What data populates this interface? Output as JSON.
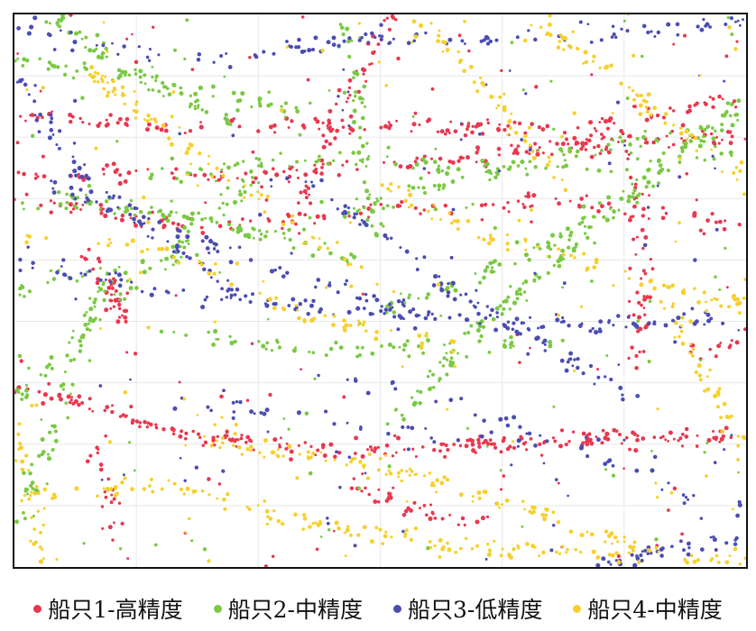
{
  "chart_data": {
    "type": "scatter",
    "title": "",
    "xlabel": "",
    "ylabel": "",
    "grid": true,
    "legend_position": "bottom",
    "xlim": [
      0,
      100
    ],
    "ylim": [
      0,
      100
    ],
    "series": [
      {
        "name": "船只1-高精度",
        "color": "#e8384f",
        "tracks": [
          {
            "x": [
              0,
              20,
              40,
              60,
              80,
              100
            ],
            "y": [
              33,
              25,
              21,
              22,
              23,
              24
            ],
            "count": 230
          },
          {
            "x": [
              0,
              30,
              60,
              80,
              100
            ],
            "y": [
              71,
              71,
              74,
              77,
              78
            ],
            "count": 170
          },
          {
            "x": [
              0,
              20,
              50,
              75,
              100
            ],
            "y": [
              82,
              80,
              80,
              79,
              85
            ],
            "count": 140
          },
          {
            "x": [
              0,
              25,
              50,
              75,
              100
            ],
            "y": [
              67,
              61,
              65,
              66,
              62
            ],
            "count": 110
          },
          {
            "x": [
              38,
              44,
              52
            ],
            "y": [
              62,
              82,
              100
            ],
            "count": 55
          },
          {
            "x": [
              46,
              52,
              58,
              66
            ],
            "y": [
              16,
              12,
              9,
              8
            ],
            "count": 40
          },
          {
            "x": [
              83,
              85,
              86,
              85
            ],
            "y": [
              82,
              66,
              50,
              36
            ],
            "count": 50
          },
          {
            "x": [
              10,
              13,
              15
            ],
            "y": [
              57,
              50,
              45
            ],
            "count": 40
          },
          {
            "x": [
              11,
              13,
              14
            ],
            "y": [
              22,
              15,
              9
            ],
            "count": 18
          },
          {
            "x": [
              93,
              96,
              100
            ],
            "y": [
              40,
              40,
              41
            ],
            "count": 12
          }
        ]
      },
      {
        "name": "船只2-中精度",
        "color": "#7ac943",
        "tracks": [
          {
            "x": [
              0,
              4,
              8,
              12
            ],
            "y": [
              5,
              20,
              36,
              52
            ],
            "count": 60
          },
          {
            "x": [
              0,
              10,
              22,
              32
            ],
            "y": [
              30,
              45,
              58,
              70
            ],
            "count": 70
          },
          {
            "x": [
              5,
              20,
              35,
              48
            ],
            "y": [
              67,
              64,
              60,
              55
            ],
            "count": 80
          },
          {
            "x": [
              52,
              65,
              78,
              100
            ],
            "y": [
              26,
              45,
              60,
              84
            ],
            "count": 120
          },
          {
            "x": [
              48,
              62,
              75,
              86,
              100
            ],
            "y": [
              45,
              52,
              60,
              70,
              85
            ],
            "count": 90
          },
          {
            "x": [
              20,
              35,
              50,
              60,
              74
            ],
            "y": [
              43,
              40,
              39,
              40,
              41
            ],
            "count": 60
          },
          {
            "x": [
              20,
              40,
              60,
              80,
              100
            ],
            "y": [
              71,
              74,
              72,
              72,
              75
            ],
            "count": 80
          },
          {
            "x": [
              5,
              15,
              30
            ],
            "y": [
              100,
              90,
              80
            ],
            "count": 60
          },
          {
            "x": [
              45,
              47,
              50
            ],
            "y": [
              100,
              80,
              60
            ],
            "count": 50
          },
          {
            "x": [
              0,
              20,
              40,
              60,
              80,
              100
            ],
            "y": [
              50,
              55,
              62,
              70,
              76,
              80
            ],
            "count": 120
          },
          {
            "x": [
              0,
              20,
              40
            ],
            "y": [
              92,
              88,
              82
            ],
            "count": 60
          }
        ]
      },
      {
        "name": "船只3-低精度",
        "color": "#4b4db3",
        "tracks": [
          {
            "x": [
              0,
              20,
              40,
              60,
              80,
              100
            ],
            "y": [
              55,
              50,
              47,
              45,
              44,
              45
            ],
            "count": 130
          },
          {
            "x": [
              0,
              25,
              50,
              75,
              100
            ],
            "y": [
              98,
              92,
              96,
              95,
              99
            ],
            "count": 110
          },
          {
            "x": [
              40,
              50,
              60,
              72,
              86
            ],
            "y": [
              70,
              60,
              50,
              40,
              30
            ],
            "count": 80
          },
          {
            "x": [
              5,
              20,
              40,
              60
            ],
            "y": [
              70,
              62,
              52,
              44
            ],
            "count": 70
          },
          {
            "x": [
              80,
              85,
              90,
              100
            ],
            "y": [
              0,
              2,
              3,
              5
            ],
            "count": 40
          },
          {
            "x": [
              0,
              5,
              10,
              20,
              30
            ],
            "y": [
              90,
              80,
              70,
              60,
              50
            ],
            "count": 70
          },
          {
            "x": [
              40,
              60,
              80,
              100
            ],
            "y": [
              35,
              30,
              20,
              10
            ],
            "count": 40
          },
          {
            "x": [
              20,
              50,
              80
            ],
            "y": [
              30,
              25,
              22
            ],
            "count": 35
          }
        ]
      },
      {
        "name": "船只4-中精度",
        "color": "#f7d02e",
        "tracks": [
          {
            "x": [
              0,
              20,
              40,
              60,
              80,
              100
            ],
            "y": [
              12,
              15,
              8,
              4,
              2,
              1
            ],
            "count": 140
          },
          {
            "x": [
              25,
              40,
              55,
              70,
              85
            ],
            "y": [
              23,
              20,
              17,
              10,
              4
            ],
            "count": 110
          },
          {
            "x": [
              70,
              80,
              90,
              100
            ],
            "y": [
              100,
              90,
              80,
              70
            ],
            "count": 60
          },
          {
            "x": [
              50,
              60,
              75,
              90,
              100
            ],
            "y": [
              70,
              62,
              56,
              50,
              48
            ],
            "count": 80
          },
          {
            "x": [
              10,
              20,
              35,
              50
            ],
            "y": [
              90,
              80,
              65,
              50
            ],
            "count": 80
          },
          {
            "x": [
              0,
              2,
              4
            ],
            "y": [
              25,
              12,
              0
            ],
            "count": 30
          },
          {
            "x": [
              88,
              92,
              96,
              100
            ],
            "y": [
              50,
              40,
              30,
              20
            ],
            "count": 40
          },
          {
            "x": [
              0,
              20,
              40,
              60
            ],
            "y": [
              60,
              58,
              45,
              40
            ],
            "count": 60
          },
          {
            "x": [
              55,
              65,
              75
            ],
            "y": [
              100,
              85,
              70
            ],
            "count": 45
          }
        ]
      }
    ],
    "scatter_noise_per_series": 100
  }
}
